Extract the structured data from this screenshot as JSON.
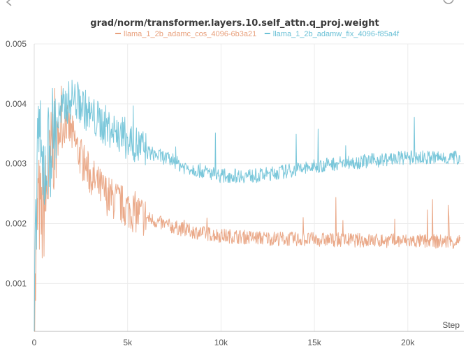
{
  "chart_data": {
    "type": "line",
    "title": "grad/norm/transformer.layers.10.self_attn.q_proj.weight",
    "xlabel": "Step",
    "ylabel": "",
    "xlim": [
      0,
      23000
    ],
    "ylim": [
      0.0002,
      0.005
    ],
    "x_ticks": [
      0,
      5000,
      10000,
      15000,
      20000
    ],
    "x_tick_labels": [
      "0",
      "5k",
      "10k",
      "15k",
      "20k"
    ],
    "y_ticks": [
      0.001,
      0.002,
      0.003,
      0.004,
      0.005
    ],
    "y_tick_labels": [
      "0.001",
      "0.002",
      "0.003",
      "0.004",
      "0.005"
    ],
    "grid": true,
    "legend_position": "top-center",
    "series": [
      {
        "name": "llama_1_2b_adamc_cos_4096-6b3a21",
        "color": "#e8a07c",
        "x": [
          0,
          200,
          400,
          700,
          1000,
          1300,
          1700,
          2000,
          2500,
          3000,
          3500,
          4000,
          5000,
          6000,
          7000,
          8000,
          9000,
          10000,
          12000,
          14000,
          16000,
          18000,
          20000,
          22000,
          22800
        ],
        "values": [
          0.0002,
          0.0024,
          0.002,
          0.0026,
          0.0033,
          0.0035,
          0.0037,
          0.0035,
          0.0031,
          0.0028,
          0.0026,
          0.00245,
          0.00225,
          0.0021,
          0.00198,
          0.0019,
          0.00184,
          0.0018,
          0.00176,
          0.00174,
          0.00173,
          0.00172,
          0.00171,
          0.0017,
          0.0017
        ]
      },
      {
        "name": "llama_1_2b_adamw_fix_4096-f85a4f",
        "color": "#6cc1d6",
        "x": [
          0,
          200,
          400,
          700,
          1000,
          1500,
          2000,
          2500,
          3000,
          4000,
          5000,
          6000,
          7000,
          8000,
          10000,
          12000,
          14000,
          16000,
          18000,
          20000,
          22000,
          22800
        ],
        "values": [
          0.0002,
          0.0038,
          0.0028,
          0.0031,
          0.0035,
          0.0039,
          0.0041,
          0.004,
          0.0038,
          0.0036,
          0.0034,
          0.0032,
          0.0031,
          0.00295,
          0.0028,
          0.0028,
          0.0029,
          0.003,
          0.00305,
          0.0031,
          0.0031,
          0.0031
        ]
      }
    ]
  }
}
